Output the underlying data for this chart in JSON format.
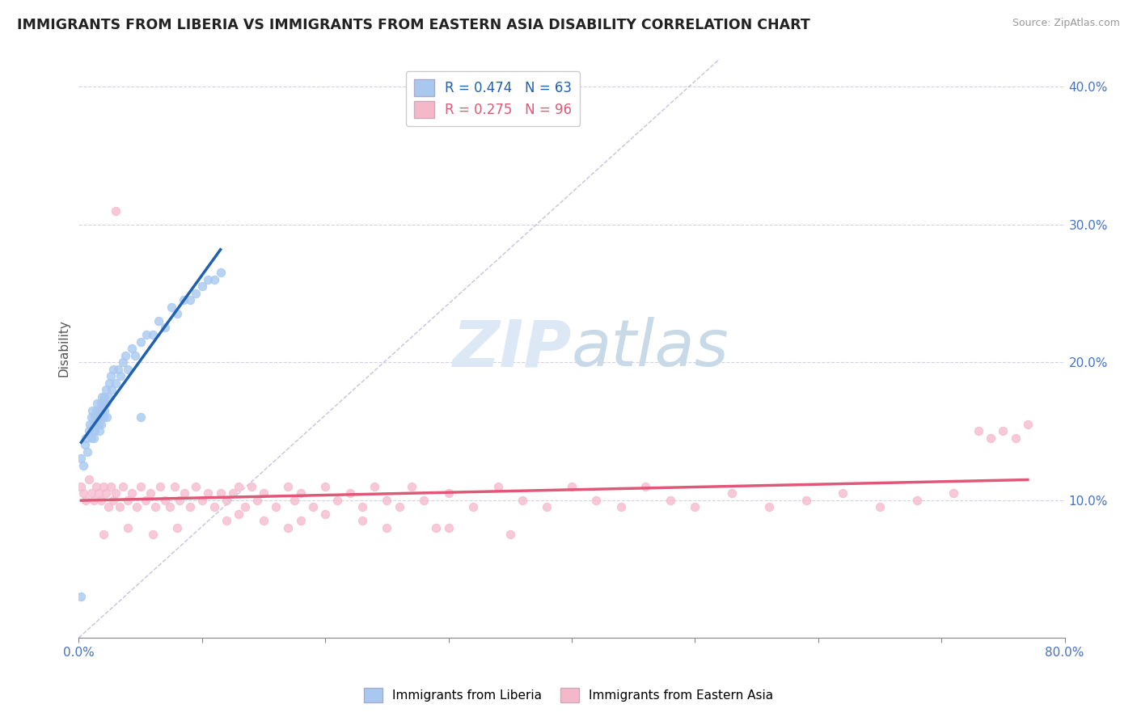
{
  "title": "IMMIGRANTS FROM LIBERIA VS IMMIGRANTS FROM EASTERN ASIA DISABILITY CORRELATION CHART",
  "source": "Source: ZipAtlas.com",
  "ylabel": "Disability",
  "xlim": [
    0.0,
    0.8
  ],
  "ylim": [
    0.0,
    0.42
  ],
  "xticks": [
    0.0,
    0.1,
    0.2,
    0.3,
    0.4,
    0.5,
    0.6,
    0.7,
    0.8
  ],
  "yticks": [
    0.0,
    0.1,
    0.2,
    0.3,
    0.4
  ],
  "liberia_R": 0.474,
  "liberia_N": 63,
  "eastern_asia_R": 0.275,
  "eastern_asia_N": 96,
  "blue_scatter_color": "#a8c8f0",
  "pink_scatter_color": "#f5b8cb",
  "blue_line_color": "#2060b0",
  "pink_line_color": "#e05878",
  "watermark_color": "#ddeeff",
  "background_color": "#ffffff",
  "liberia_x": [
    0.002,
    0.004,
    0.005,
    0.006,
    0.007,
    0.008,
    0.009,
    0.01,
    0.01,
    0.011,
    0.011,
    0.012,
    0.012,
    0.013,
    0.013,
    0.014,
    0.014,
    0.015,
    0.015,
    0.016,
    0.016,
    0.017,
    0.017,
    0.018,
    0.018,
    0.019,
    0.019,
    0.02,
    0.02,
    0.021,
    0.021,
    0.022,
    0.022,
    0.023,
    0.024,
    0.025,
    0.026,
    0.027,
    0.028,
    0.03,
    0.032,
    0.034,
    0.036,
    0.038,
    0.04,
    0.043,
    0.046,
    0.05,
    0.055,
    0.06,
    0.065,
    0.07,
    0.075,
    0.08,
    0.085,
    0.09,
    0.095,
    0.1,
    0.105,
    0.11,
    0.115,
    0.002,
    0.05
  ],
  "liberia_y": [
    0.13,
    0.125,
    0.14,
    0.145,
    0.135,
    0.15,
    0.155,
    0.145,
    0.16,
    0.15,
    0.165,
    0.155,
    0.145,
    0.16,
    0.15,
    0.165,
    0.155,
    0.16,
    0.17,
    0.155,
    0.165,
    0.15,
    0.16,
    0.17,
    0.155,
    0.165,
    0.175,
    0.16,
    0.17,
    0.165,
    0.175,
    0.17,
    0.18,
    0.16,
    0.175,
    0.185,
    0.19,
    0.18,
    0.195,
    0.185,
    0.195,
    0.19,
    0.2,
    0.205,
    0.195,
    0.21,
    0.205,
    0.215,
    0.22,
    0.22,
    0.23,
    0.225,
    0.24,
    0.235,
    0.245,
    0.245,
    0.25,
    0.255,
    0.26,
    0.26,
    0.265,
    0.03,
    0.16
  ],
  "eastern_asia_x": [
    0.002,
    0.004,
    0.006,
    0.008,
    0.01,
    0.012,
    0.014,
    0.016,
    0.018,
    0.02,
    0.022,
    0.024,
    0.026,
    0.028,
    0.03,
    0.033,
    0.036,
    0.04,
    0.043,
    0.047,
    0.05,
    0.054,
    0.058,
    0.062,
    0.066,
    0.07,
    0.074,
    0.078,
    0.082,
    0.086,
    0.09,
    0.095,
    0.1,
    0.105,
    0.11,
    0.115,
    0.12,
    0.125,
    0.13,
    0.135,
    0.14,
    0.145,
    0.15,
    0.16,
    0.17,
    0.175,
    0.18,
    0.19,
    0.2,
    0.21,
    0.22,
    0.23,
    0.24,
    0.25,
    0.26,
    0.27,
    0.28,
    0.3,
    0.32,
    0.34,
    0.36,
    0.38,
    0.4,
    0.42,
    0.44,
    0.46,
    0.48,
    0.5,
    0.53,
    0.56,
    0.59,
    0.62,
    0.65,
    0.68,
    0.71,
    0.73,
    0.74,
    0.75,
    0.76,
    0.77,
    0.03,
    0.15,
    0.2,
    0.25,
    0.18,
    0.13,
    0.08,
    0.06,
    0.04,
    0.02,
    0.3,
    0.35,
    0.12,
    0.17,
    0.23,
    0.29
  ],
  "eastern_asia_y": [
    0.11,
    0.105,
    0.1,
    0.115,
    0.105,
    0.1,
    0.11,
    0.105,
    0.1,
    0.11,
    0.105,
    0.095,
    0.11,
    0.1,
    0.105,
    0.095,
    0.11,
    0.1,
    0.105,
    0.095,
    0.11,
    0.1,
    0.105,
    0.095,
    0.11,
    0.1,
    0.095,
    0.11,
    0.1,
    0.105,
    0.095,
    0.11,
    0.1,
    0.105,
    0.095,
    0.105,
    0.1,
    0.105,
    0.11,
    0.095,
    0.11,
    0.1,
    0.105,
    0.095,
    0.11,
    0.1,
    0.105,
    0.095,
    0.11,
    0.1,
    0.105,
    0.095,
    0.11,
    0.1,
    0.095,
    0.11,
    0.1,
    0.105,
    0.095,
    0.11,
    0.1,
    0.095,
    0.11,
    0.1,
    0.095,
    0.11,
    0.1,
    0.095,
    0.105,
    0.095,
    0.1,
    0.105,
    0.095,
    0.1,
    0.105,
    0.15,
    0.145,
    0.15,
    0.145,
    0.155,
    0.31,
    0.085,
    0.09,
    0.08,
    0.085,
    0.09,
    0.08,
    0.075,
    0.08,
    0.075,
    0.08,
    0.075,
    0.085,
    0.08,
    0.085,
    0.08
  ]
}
